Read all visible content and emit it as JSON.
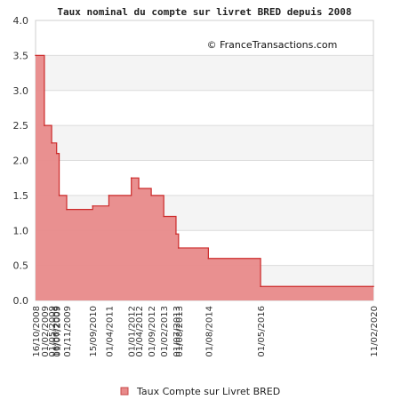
{
  "chart_data": {
    "type": "area",
    "title": "Taux nominal du compte sur livret BRED depuis 2008",
    "annotation": "© FranceTransactions.com",
    "xlabel": "",
    "ylabel": "",
    "ylim": [
      0,
      4.0
    ],
    "y_ticks": [
      "0.0",
      "0.5",
      "1.0",
      "1.5",
      "2.0",
      "2.5",
      "3.0",
      "3.5",
      "4.0"
    ],
    "x_start": "2008-10-16",
    "x_end": "2020-02-11",
    "x_ticks": [
      {
        "date": "2008-10-16",
        "label": "16/10/2008"
      },
      {
        "date": "2009-02-01",
        "label": "01/02/2009"
      },
      {
        "date": "2009-05-01",
        "label": "01/05/2009"
      },
      {
        "date": "2009-06-16",
        "label": "16/06/2009"
      },
      {
        "date": "2009-07-01",
        "label": "01/07/2009"
      },
      {
        "date": "2009-11-01",
        "label": "01/11/2009"
      },
      {
        "date": "2010-09-15",
        "label": "15/09/2010"
      },
      {
        "date": "2011-04-01",
        "label": "01/04/2011"
      },
      {
        "date": "2012-01-01",
        "label": "01/01/2012"
      },
      {
        "date": "2012-04-01",
        "label": "01/04/2012"
      },
      {
        "date": "2012-09-01",
        "label": "01/09/2012"
      },
      {
        "date": "2013-02-01",
        "label": "01/02/2013"
      },
      {
        "date": "2013-07-01",
        "label": "01/07/2013"
      },
      {
        "date": "2013-08-01",
        "label": "01/08/2013"
      },
      {
        "date": "2014-08-01",
        "label": "01/08/2014"
      },
      {
        "date": "2016-05-01",
        "label": "01/05/2016"
      },
      {
        "date": "2020-02-11",
        "label": "11/02/2020"
      }
    ],
    "series": [
      {
        "name": "Taux Compte sur Livret BRED",
        "color": "#e06060",
        "fill": "#e88a8a",
        "points": [
          {
            "x": "2008-10-16",
            "y": 3.5
          },
          {
            "x": "2009-02-01",
            "y": 2.5
          },
          {
            "x": "2009-05-01",
            "y": 2.25
          },
          {
            "x": "2009-07-01",
            "y": 2.1
          },
          {
            "x": "2009-08-01",
            "y": 1.5
          },
          {
            "x": "2009-11-01",
            "y": 1.3
          },
          {
            "x": "2010-09-15",
            "y": 1.35
          },
          {
            "x": "2011-04-01",
            "y": 1.5
          },
          {
            "x": "2012-01-01",
            "y": 1.75
          },
          {
            "x": "2012-04-01",
            "y": 1.6
          },
          {
            "x": "2012-09-01",
            "y": 1.5
          },
          {
            "x": "2013-02-01",
            "y": 1.2
          },
          {
            "x": "2013-07-01",
            "y": 0.95
          },
          {
            "x": "2013-08-01",
            "y": 0.75
          },
          {
            "x": "2014-08-01",
            "y": 0.6
          },
          {
            "x": "2016-05-01",
            "y": 0.2
          },
          {
            "x": "2020-02-11",
            "y": 0.2
          }
        ]
      }
    ],
    "grid": true,
    "legend_position": "bottom"
  }
}
